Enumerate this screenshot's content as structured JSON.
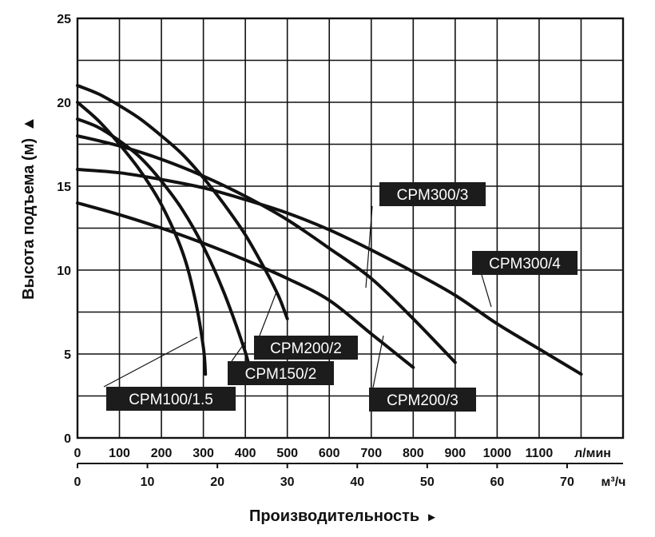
{
  "chart_data": {
    "type": "line",
    "ylabel": "Высота подъема (м)",
    "ylabel_arrow": "▲",
    "xlabel": "Производительность",
    "xlabel_arrow": "►",
    "x_unit_primary": "л/мин",
    "x_unit_secondary": "м³/ч",
    "xlim": [
      0,
      1300
    ],
    "ylim": [
      0,
      25
    ],
    "x_ticks": [
      0,
      100,
      200,
      300,
      400,
      500,
      600,
      700,
      800,
      900,
      1000,
      1100
    ],
    "x_secondary_ticks": [
      0,
      10,
      20,
      30,
      40,
      50,
      60,
      70
    ],
    "y_ticks": [
      0,
      5,
      10,
      15,
      20,
      25
    ],
    "grid": true,
    "series": [
      {
        "name": "CPM100/1.5",
        "points": [
          [
            0,
            20.0
          ],
          [
            50,
            18.9
          ],
          [
            100,
            17.5
          ],
          [
            150,
            15.9
          ],
          [
            200,
            13.9
          ],
          [
            250,
            11.1
          ],
          [
            280,
            8.3
          ],
          [
            300,
            5.4
          ],
          [
            305,
            3.8
          ]
        ]
      },
      {
        "name": "CPM150/2",
        "points": [
          [
            0,
            19.0
          ],
          [
            50,
            18.5
          ],
          [
            100,
            17.7
          ],
          [
            150,
            16.7
          ],
          [
            200,
            15.3
          ],
          [
            250,
            13.6
          ],
          [
            300,
            11.4
          ],
          [
            350,
            8.6
          ],
          [
            400,
            5.1
          ],
          [
            410,
            4.0
          ]
        ]
      },
      {
        "name": "CPM200/2",
        "points": [
          [
            0,
            21.0
          ],
          [
            50,
            20.5
          ],
          [
            100,
            19.8
          ],
          [
            150,
            19.0
          ],
          [
            200,
            18.0
          ],
          [
            250,
            16.9
          ],
          [
            300,
            15.5
          ],
          [
            350,
            13.9
          ],
          [
            400,
            12.1
          ],
          [
            450,
            9.9
          ],
          [
            480,
            8.4
          ],
          [
            500,
            7.1
          ]
        ]
      },
      {
        "name": "CPM200/3",
        "points": [
          [
            0,
            14.0
          ],
          [
            100,
            13.3
          ],
          [
            200,
            12.5
          ],
          [
            300,
            11.6
          ],
          [
            400,
            10.6
          ],
          [
            500,
            9.5
          ],
          [
            600,
            8.2
          ],
          [
            700,
            6.2
          ],
          [
            800,
            4.2
          ]
        ]
      },
      {
        "name": "CPM300/3",
        "points": [
          [
            0,
            18.0
          ],
          [
            100,
            17.4
          ],
          [
            200,
            16.6
          ],
          [
            300,
            15.6
          ],
          [
            400,
            14.4
          ],
          [
            500,
            13.0
          ],
          [
            600,
            11.3
          ],
          [
            700,
            9.5
          ],
          [
            800,
            7.1
          ],
          [
            900,
            4.5
          ]
        ]
      },
      {
        "name": "CPM300/4",
        "points": [
          [
            0,
            16.0
          ],
          [
            100,
            15.8
          ],
          [
            200,
            15.4
          ],
          [
            300,
            14.9
          ],
          [
            400,
            14.2
          ],
          [
            500,
            13.4
          ],
          [
            600,
            12.4
          ],
          [
            700,
            11.2
          ],
          [
            800,
            9.9
          ],
          [
            900,
            8.5
          ],
          [
            1000,
            6.8
          ],
          [
            1100,
            5.3
          ],
          [
            1200,
            3.8
          ]
        ]
      }
    ],
    "annotations": [
      {
        "text": "CPM300/3",
        "series": "CPM300/3"
      },
      {
        "text": "CPM300/4",
        "series": "CPM300/4"
      },
      {
        "text": "CPM200/2",
        "series": "CPM200/2"
      },
      {
        "text": "CPM150/2",
        "series": "CPM150/2"
      },
      {
        "text": "CPM100/1.5",
        "series": "CPM100/1.5"
      },
      {
        "text": "CPM200/3",
        "series": "CPM200/3"
      }
    ]
  }
}
